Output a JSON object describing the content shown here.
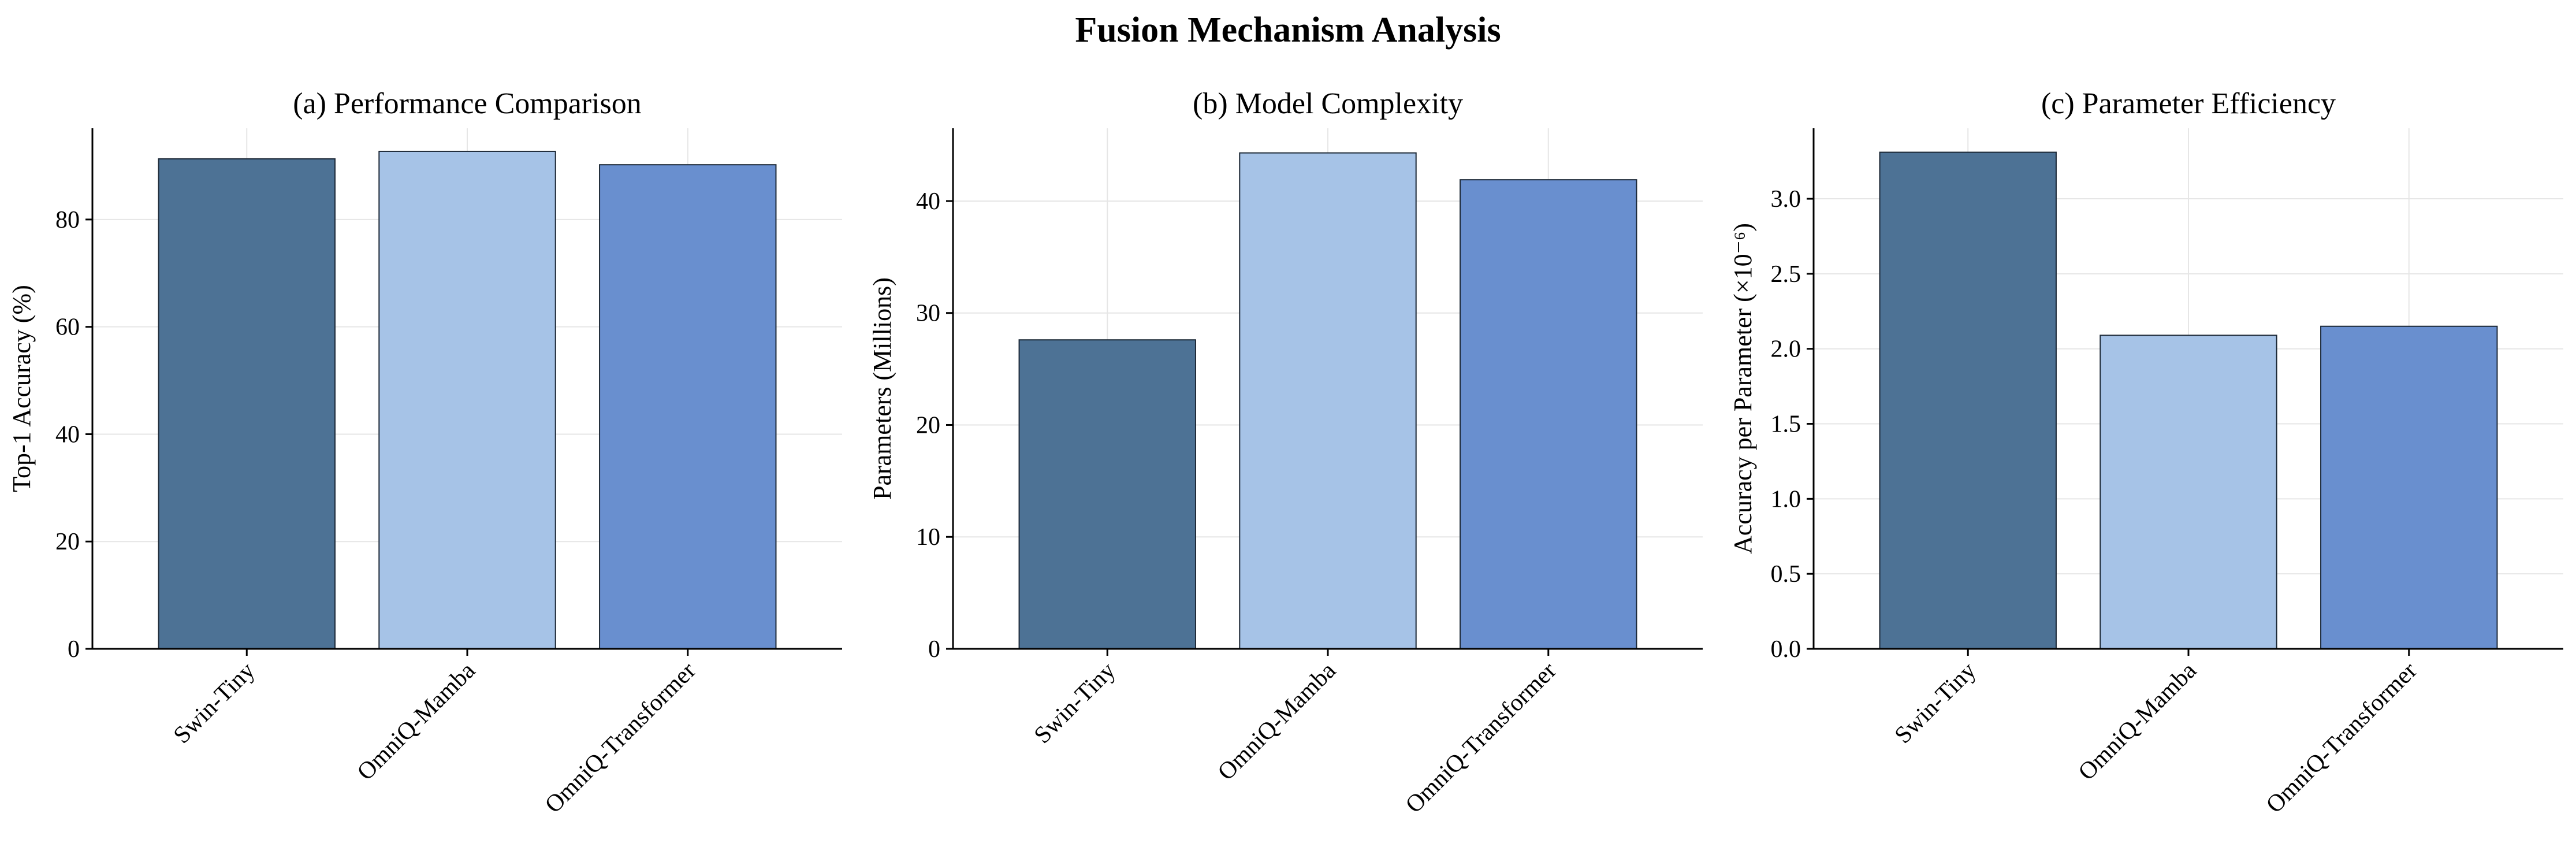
{
  "suptitle": "Fusion Mechanism Analysis",
  "colors": {
    "Swin-Tiny": "#4d7295",
    "OmniQ-Mamba": "#a6c3e7",
    "OmniQ-Transformer": "#698fcf",
    "bar_edge": "#1c2836",
    "grid": "#e6e6e6",
    "axis": "#000000"
  },
  "chart_data": [
    {
      "type": "bar",
      "title": "(a) Performance Comparison",
      "xlabel": "",
      "ylabel": "Top-1 Accuracy (%)",
      "categories": [
        "Swin-Tiny",
        "OmniQ-Mamba",
        "OmniQ-Transformer"
      ],
      "values": [
        91.3,
        92.7,
        90.2
      ],
      "ylim": [
        0,
        97
      ],
      "yticks": [
        0,
        20,
        40,
        60,
        80
      ],
      "ytick_labels": [
        "0",
        "20",
        "40",
        "60",
        "80"
      ],
      "grid": true
    },
    {
      "type": "bar",
      "title": "(b) Model Complexity",
      "xlabel": "",
      "ylabel": "Parameters (Millions)",
      "categories": [
        "Swin-Tiny",
        "OmniQ-Mamba",
        "OmniQ-Transformer"
      ],
      "values": [
        27.6,
        44.3,
        41.9
      ],
      "ylim": [
        0,
        46.5
      ],
      "yticks": [
        0,
        10,
        20,
        30,
        40
      ],
      "ytick_labels": [
        "0",
        "10",
        "20",
        "30",
        "40"
      ],
      "grid": true
    },
    {
      "type": "bar",
      "title": "(c) Parameter Efficiency",
      "xlabel": "",
      "ylabel": "Accuracy per Parameter (×10⁻⁶)",
      "categories": [
        "Swin-Tiny",
        "OmniQ-Mamba",
        "OmniQ-Transformer"
      ],
      "values": [
        3.31,
        2.09,
        2.15
      ],
      "ylim": [
        0,
        3.47
      ],
      "yticks": [
        0.0,
        0.5,
        1.0,
        1.5,
        2.0,
        2.5,
        3.0
      ],
      "ytick_labels": [
        "0.0",
        "0.5",
        "1.0",
        "1.5",
        "2.0",
        "2.5",
        "3.0"
      ],
      "grid": true
    }
  ]
}
